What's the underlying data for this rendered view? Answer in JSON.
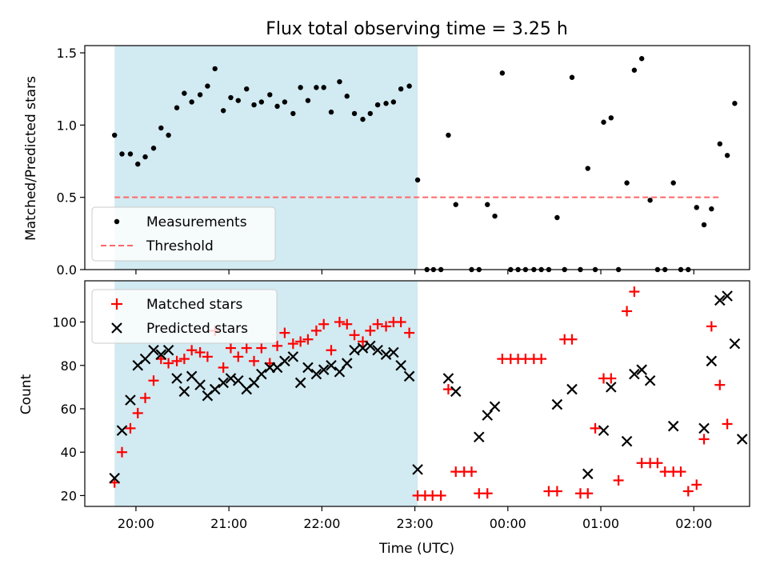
{
  "chart_data": {
    "title": "Flux total observing time = 3.25 h",
    "xlabel": "Time (UTC)",
    "x_tick_labels": [
      "20:00",
      "21:00",
      "22:00",
      "23:00",
      "00:00",
      "01:00",
      "02:00"
    ],
    "x_tick_hours": [
      20,
      21,
      22,
      23,
      24,
      25,
      26
    ],
    "xlim_hours": [
      19.45,
      26.6
    ],
    "shaded_span_hours": [
      19.77,
      23.03
    ],
    "shaded_color": "#add8e6",
    "panels": [
      {
        "type": "scatter",
        "ylabel": "Matched/Predicted stars",
        "ylim": [
          0,
          1.55
        ],
        "yticks": [
          0.0,
          0.5,
          1.0,
          1.5
        ],
        "ytick_labels": [
          "0.0",
          "0.5",
          "1.0",
          "1.5"
        ],
        "legend_position": "lower-left",
        "threshold": {
          "name": "Threshold",
          "y": 0.5,
          "x_range_hours": [
            19.77,
            26.28
          ],
          "color": "#ff6666"
        },
        "series": [
          {
            "name": "Measurements",
            "marker": "dot",
            "color": "#000000",
            "points": [
              [
                19.77,
                0.93
              ],
              [
                19.85,
                0.8
              ],
              [
                19.94,
                0.8
              ],
              [
                20.02,
                0.73
              ],
              [
                20.1,
                0.78
              ],
              [
                20.19,
                0.84
              ],
              [
                20.27,
                0.98
              ],
              [
                20.35,
                0.93
              ],
              [
                20.44,
                1.12
              ],
              [
                20.52,
                1.22
              ],
              [
                20.6,
                1.16
              ],
              [
                20.69,
                1.21
              ],
              [
                20.77,
                1.27
              ],
              [
                20.85,
                1.39
              ],
              [
                20.94,
                1.1
              ],
              [
                21.02,
                1.19
              ],
              [
                21.1,
                1.17
              ],
              [
                21.19,
                1.25
              ],
              [
                21.27,
                1.14
              ],
              [
                21.35,
                1.16
              ],
              [
                21.44,
                1.21
              ],
              [
                21.52,
                1.13
              ],
              [
                21.6,
                1.16
              ],
              [
                21.69,
                1.08
              ],
              [
                21.77,
                1.26
              ],
              [
                21.85,
                1.17
              ],
              [
                21.94,
                1.26
              ],
              [
                22.02,
                1.26
              ],
              [
                22.1,
                1.09
              ],
              [
                22.19,
                1.3
              ],
              [
                22.27,
                1.2
              ],
              [
                22.35,
                1.08
              ],
              [
                22.44,
                1.04
              ],
              [
                22.52,
                1.08
              ],
              [
                22.6,
                1.14
              ],
              [
                22.69,
                1.15
              ],
              [
                22.77,
                1.16
              ],
              [
                22.85,
                1.25
              ],
              [
                22.94,
                1.27
              ],
              [
                23.03,
                0.62
              ],
              [
                23.13,
                0.0
              ],
              [
                23.2,
                0.0
              ],
              [
                23.28,
                0.0
              ],
              [
                23.36,
                0.93
              ],
              [
                23.44,
                0.45
              ],
              [
                23.61,
                0.0
              ],
              [
                23.69,
                0.0
              ],
              [
                23.78,
                0.45
              ],
              [
                23.86,
                0.37
              ],
              [
                23.94,
                1.36
              ],
              [
                24.03,
                0.0
              ],
              [
                24.11,
                0.0
              ],
              [
                24.19,
                0.0
              ],
              [
                24.28,
                0.0
              ],
              [
                24.36,
                0.0
              ],
              [
                24.44,
                0.0
              ],
              [
                24.53,
                0.36
              ],
              [
                24.61,
                0.0
              ],
              [
                24.69,
                1.33
              ],
              [
                24.78,
                0.0
              ],
              [
                24.86,
                0.7
              ],
              [
                24.94,
                0.0
              ],
              [
                25.03,
                1.02
              ],
              [
                25.11,
                1.05
              ],
              [
                25.19,
                0.0
              ],
              [
                25.28,
                0.6
              ],
              [
                25.36,
                1.38
              ],
              [
                25.44,
                1.46
              ],
              [
                25.53,
                0.48
              ],
              [
                25.61,
                0.0
              ],
              [
                25.69,
                0.0
              ],
              [
                25.78,
                0.6
              ],
              [
                25.86,
                0.0
              ],
              [
                25.94,
                0.0
              ],
              [
                26.03,
                0.43
              ],
              [
                26.11,
                0.31
              ],
              [
                26.19,
                0.42
              ],
              [
                26.28,
                0.87
              ],
              [
                26.36,
                0.79
              ],
              [
                26.44,
                1.15
              ]
            ]
          }
        ]
      },
      {
        "type": "scatter",
        "ylabel": "Count",
        "ylim": [
          15,
          119
        ],
        "yticks": [
          20,
          40,
          60,
          80,
          100
        ],
        "ytick_labels": [
          "20",
          "40",
          "60",
          "80",
          "100"
        ],
        "legend_position": "upper-left",
        "series": [
          {
            "name": "Matched stars",
            "marker": "plus",
            "color": "#ff0000",
            "points": [
              [
                19.77,
                26
              ],
              [
                19.85,
                40
              ],
              [
                19.94,
                51
              ],
              [
                20.02,
                58
              ],
              [
                20.1,
                65
              ],
              [
                20.19,
                73
              ],
              [
                20.27,
                83
              ],
              [
                20.35,
                81
              ],
              [
                20.44,
                82
              ],
              [
                20.52,
                83
              ],
              [
                20.6,
                87
              ],
              [
                20.69,
                86
              ],
              [
                20.77,
                84
              ],
              [
                20.85,
                96
              ],
              [
                20.94,
                79
              ],
              [
                21.02,
                88
              ],
              [
                21.1,
                84
              ],
              [
                21.19,
                88
              ],
              [
                21.27,
                82
              ],
              [
                21.35,
                88
              ],
              [
                21.44,
                81
              ],
              [
                21.52,
                89
              ],
              [
                21.6,
                95
              ],
              [
                21.69,
                90
              ],
              [
                21.77,
                91
              ],
              [
                21.85,
                92
              ],
              [
                21.94,
                96
              ],
              [
                22.02,
                99
              ],
              [
                22.1,
                87
              ],
              [
                22.19,
                100
              ],
              [
                22.27,
                99
              ],
              [
                22.35,
                94
              ],
              [
                22.44,
                91
              ],
              [
                22.52,
                96
              ],
              [
                22.6,
                99
              ],
              [
                22.69,
                98
              ],
              [
                22.77,
                100
              ],
              [
                22.85,
                100
              ],
              [
                22.94,
                95
              ],
              [
                23.03,
                20
              ],
              [
                23.11,
                20
              ],
              [
                23.19,
                20
              ],
              [
                23.28,
                20
              ],
              [
                23.36,
                69
              ],
              [
                23.44,
                31
              ],
              [
                23.53,
                31
              ],
              [
                23.61,
                31
              ],
              [
                23.69,
                21
              ],
              [
                23.78,
                21
              ],
              [
                23.94,
                83
              ],
              [
                24.03,
                83
              ],
              [
                24.11,
                83
              ],
              [
                24.19,
                83
              ],
              [
                24.28,
                83
              ],
              [
                24.36,
                83
              ],
              [
                24.44,
                22
              ],
              [
                24.53,
                22
              ],
              [
                24.61,
                92
              ],
              [
                24.69,
                92
              ],
              [
                24.78,
                21
              ],
              [
                24.86,
                21
              ],
              [
                24.94,
                51
              ],
              [
                25.03,
                74
              ],
              [
                25.11,
                74
              ],
              [
                25.19,
                27
              ],
              [
                25.28,
                105
              ],
              [
                25.36,
                114
              ],
              [
                25.44,
                35
              ],
              [
                25.53,
                35
              ],
              [
                25.61,
                35
              ],
              [
                25.69,
                31
              ],
              [
                25.78,
                31
              ],
              [
                25.86,
                31
              ],
              [
                25.94,
                22
              ],
              [
                26.03,
                25
              ],
              [
                26.11,
                46
              ],
              [
                26.19,
                98
              ],
              [
                26.28,
                71
              ],
              [
                26.36,
                53
              ]
            ]
          },
          {
            "name": "Predicted stars",
            "marker": "x",
            "color": "#000000",
            "points": [
              [
                19.77,
                28
              ],
              [
                19.85,
                50
              ],
              [
                19.94,
                64
              ],
              [
                20.02,
                80
              ],
              [
                20.1,
                83
              ],
              [
                20.19,
                87
              ],
              [
                20.27,
                85
              ],
              [
                20.35,
                87
              ],
              [
                20.44,
                74
              ],
              [
                20.52,
                68
              ],
              [
                20.6,
                75
              ],
              [
                20.69,
                71
              ],
              [
                20.77,
                66
              ],
              [
                20.85,
                69
              ],
              [
                20.94,
                72
              ],
              [
                21.02,
                74
              ],
              [
                21.1,
                73
              ],
              [
                21.19,
                69
              ],
              [
                21.27,
                72
              ],
              [
                21.35,
                76
              ],
              [
                21.44,
                79
              ],
              [
                21.52,
                79
              ],
              [
                21.6,
                82
              ],
              [
                21.69,
                84
              ],
              [
                21.77,
                72
              ],
              [
                21.85,
                79
              ],
              [
                21.94,
                76
              ],
              [
                22.02,
                78
              ],
              [
                22.1,
                80
              ],
              [
                22.19,
                77
              ],
              [
                22.27,
                81
              ],
              [
                22.35,
                87
              ],
              [
                22.44,
                88
              ],
              [
                22.52,
                89
              ],
              [
                22.6,
                87
              ],
              [
                22.69,
                85
              ],
              [
                22.77,
                86
              ],
              [
                22.85,
                80
              ],
              [
                22.94,
                75
              ],
              [
                23.03,
                32
              ],
              [
                23.36,
                74
              ],
              [
                23.44,
                68
              ],
              [
                23.69,
                47
              ],
              [
                23.78,
                57
              ],
              [
                23.86,
                61
              ],
              [
                24.53,
                62
              ],
              [
                24.69,
                69
              ],
              [
                24.86,
                30
              ],
              [
                25.03,
                50
              ],
              [
                25.11,
                70
              ],
              [
                25.28,
                45
              ],
              [
                25.36,
                76
              ],
              [
                25.44,
                78
              ],
              [
                25.53,
                73
              ],
              [
                25.78,
                52
              ],
              [
                26.11,
                51
              ],
              [
                26.19,
                82
              ],
              [
                26.28,
                110
              ],
              [
                26.36,
                112
              ],
              [
                26.44,
                90
              ],
              [
                26.52,
                46
              ]
            ]
          }
        ]
      }
    ]
  }
}
